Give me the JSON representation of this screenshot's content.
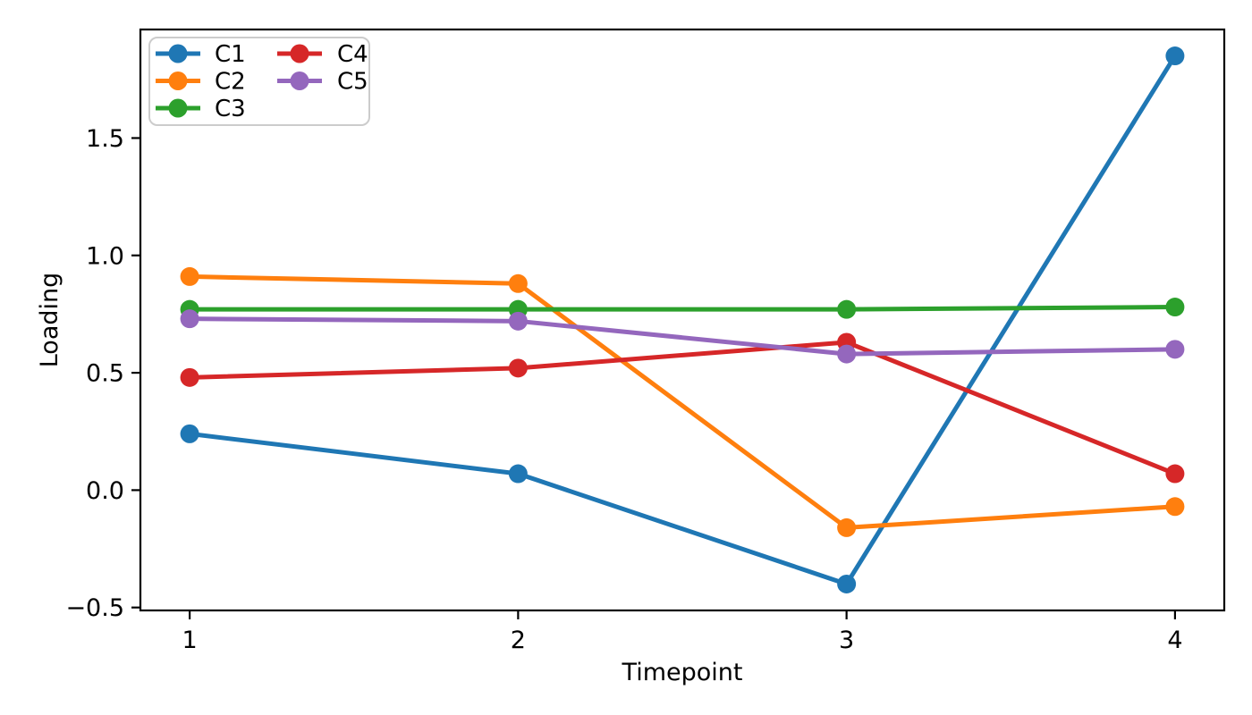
{
  "chart_data": {
    "type": "line",
    "xlabel": "Timepoint",
    "ylabel": "Loading",
    "background": "#ffffff",
    "axis_color": "#000000",
    "x": [
      1,
      2,
      3,
      4
    ],
    "xtick_labels": [
      "1",
      "2",
      "3",
      "4"
    ],
    "ytick_values": [
      -0.5,
      0.0,
      0.5,
      1.0,
      1.5
    ],
    "ytick_labels": [
      "−0.5",
      "0.0",
      "0.5",
      "1.0",
      "1.5"
    ],
    "xlim": [
      0.85,
      4.15
    ],
    "ylim": [
      -0.5125,
      1.9625
    ],
    "grid": false,
    "marker": "circle",
    "legend": {
      "position": "upper-left",
      "columns": 2,
      "fill_order": "column-major",
      "entries": [
        "C1",
        "C2",
        "C3",
        "C4",
        "C5"
      ]
    },
    "series": [
      {
        "name": "C1",
        "color": "#1f77b4",
        "values": [
          0.24,
          0.07,
          -0.4,
          1.85
        ]
      },
      {
        "name": "C2",
        "color": "#ff7f0e",
        "values": [
          0.91,
          0.88,
          -0.16,
          -0.07
        ]
      },
      {
        "name": "C3",
        "color": "#2ca02c",
        "values": [
          0.77,
          0.77,
          0.77,
          0.78
        ]
      },
      {
        "name": "C4",
        "color": "#d62728",
        "values": [
          0.48,
          0.52,
          0.63,
          0.07
        ]
      },
      {
        "name": "C5",
        "color": "#9467bd",
        "values": [
          0.73,
          0.72,
          0.58,
          0.6
        ]
      }
    ]
  }
}
